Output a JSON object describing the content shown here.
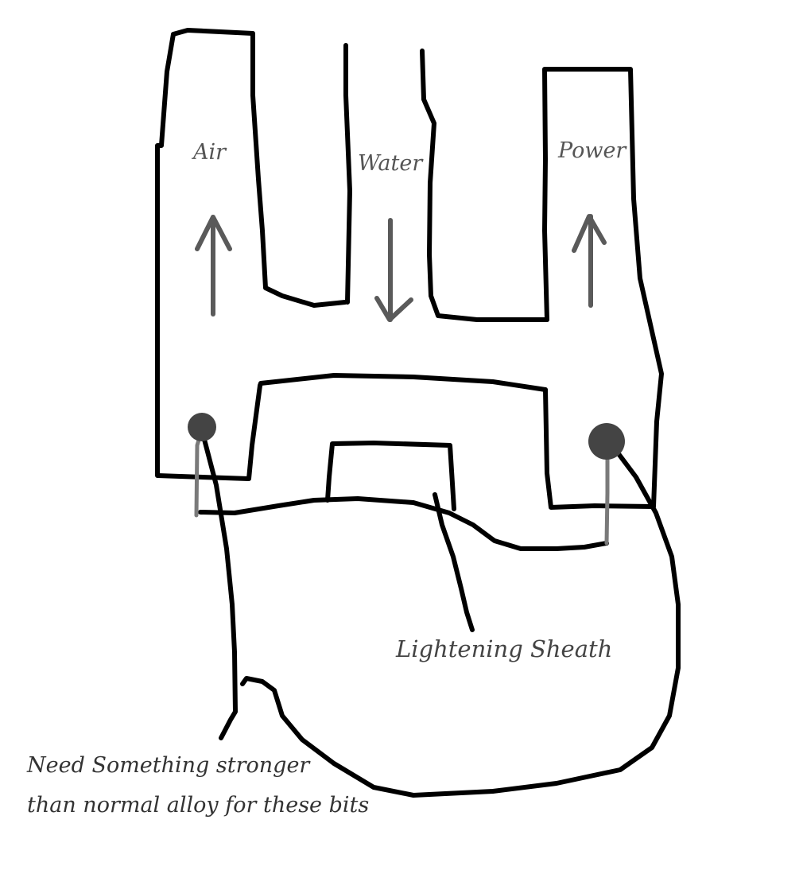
{
  "diagram": {
    "channels": {
      "air_label": "Air",
      "water_label": "Water",
      "power_label": "Power"
    },
    "flow": {
      "air_direction": "up",
      "water_direction": "down",
      "power_direction": "up"
    },
    "callouts": {
      "sheath_label": "Lightening Sheath",
      "note_line_1": "Need Something stronger",
      "note_line_2": "than normal alloy for these bits"
    },
    "colors": {
      "outline": "#000000",
      "arrows": "#5a5a5a",
      "text": "#555555"
    }
  }
}
